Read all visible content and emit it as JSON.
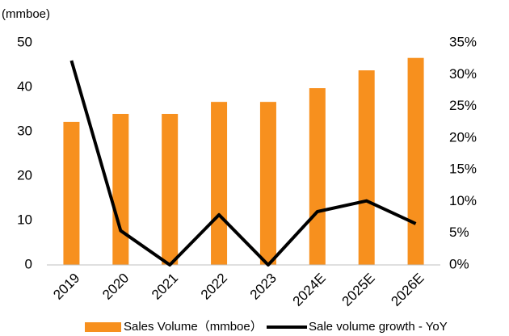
{
  "chart_data": {
    "type": "bar_line",
    "y_label": "(mmboe)",
    "categories": [
      "2019",
      "2020",
      "2021",
      "2022",
      "2023",
      "2024E",
      "2025E",
      "2026E"
    ],
    "series": [
      {
        "name": "Sales Volume（mmboe）",
        "color": "#f7901e",
        "type": "bar",
        "values": [
          32.2,
          34.0,
          34.0,
          36.7,
          36.7,
          39.8,
          43.8,
          46.6
        ]
      },
      {
        "name": "Sale volume growth - YoY",
        "color": "#000000",
        "type": "line",
        "axis": "y2",
        "values": [
          32.2,
          5.4,
          0,
          7.9,
          0,
          8.4,
          10.1,
          6.5
        ]
      }
    ],
    "ylim": [
      0,
      50
    ],
    "yticks": [
      0,
      10,
      20,
      30,
      40,
      50
    ],
    "y2lim": [
      0,
      35
    ],
    "y2ticks": [
      {
        "value": 0,
        "label": "0%"
      },
      {
        "value": 5,
        "label": "5%"
      },
      {
        "value": 10,
        "label": "10%"
      },
      {
        "value": 15,
        "label": "15%"
      },
      {
        "value": 20,
        "label": "20%"
      },
      {
        "value": 25,
        "label": "25%"
      },
      {
        "value": 30,
        "label": "30%"
      },
      {
        "value": 35,
        "label": "35%"
      }
    ],
    "legend": "bottom"
  }
}
